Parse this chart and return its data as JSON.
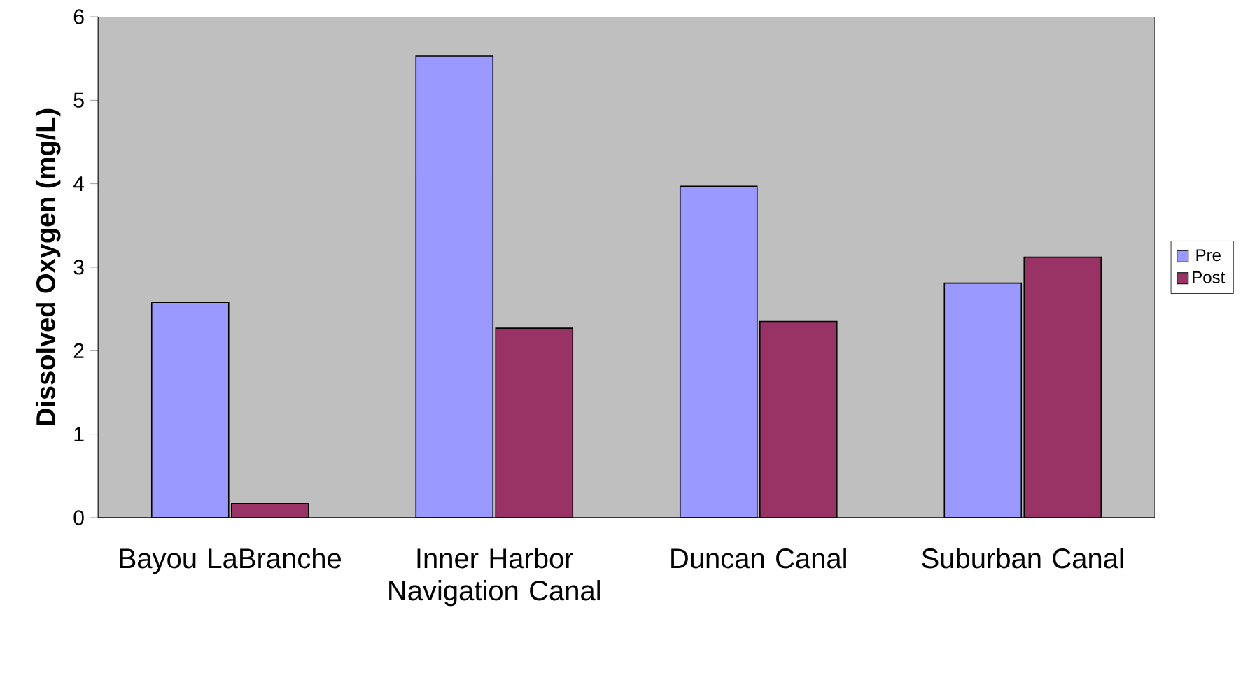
{
  "chart_data": {
    "type": "bar",
    "ylabel": "Dissolved Oxygen (mg/L)",
    "categories": [
      "Bayou LaBranche",
      "Inner Harbor Navigation Canal",
      "Duncan Canal",
      "Suburban Canal"
    ],
    "series": [
      {
        "name": "Pre",
        "color": "#9999ff",
        "values": [
          2.58,
          5.53,
          3.97,
          2.81
        ]
      },
      {
        "name": "Post",
        "color": "#993366",
        "values": [
          0.17,
          2.27,
          2.35,
          3.12
        ]
      }
    ],
    "ylim": [
      0,
      6
    ],
    "yticks": [
      0,
      1,
      2,
      3,
      4,
      5,
      6
    ],
    "grid": false,
    "legend": "right"
  }
}
